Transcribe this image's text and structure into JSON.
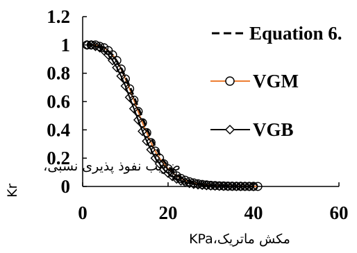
{
  "chart_data": {
    "type": "scatter",
    "title": "",
    "xlabel": "مکش ماتریک،KPa",
    "ylabel_rotated": "Kr",
    "ylabel_overlay": "ضریب نفوذ پذیری نسبی،",
    "xlim": [
      0,
      60
    ],
    "ylim": [
      0,
      1.2
    ],
    "x_ticks": [
      "0",
      "20",
      "40",
      "60"
    ],
    "y_ticks": [
      "0",
      "0.2",
      "0.4",
      "0.6",
      "0.8",
      "1",
      "1.2"
    ],
    "grid": false,
    "legend_position": "right",
    "series": [
      {
        "name": "Equation 6.",
        "style": "dashed-line",
        "color": "#000000",
        "x": [
          1,
          3,
          5,
          7,
          9,
          11,
          13,
          15,
          17,
          19,
          21,
          23,
          25,
          27,
          29,
          31,
          33,
          35,
          37
        ],
        "y": [
          1.0,
          1.0,
          0.98,
          0.93,
          0.84,
          0.71,
          0.56,
          0.41,
          0.28,
          0.18,
          0.11,
          0.065,
          0.036,
          0.02,
          0.011,
          0.006,
          0.003,
          0.002,
          0.001
        ]
      },
      {
        "name": "VGM",
        "style": "line-circle",
        "color": "#ED7D31",
        "x": [
          1,
          2,
          3,
          4,
          5,
          6,
          7,
          8,
          9,
          10,
          11,
          12,
          13,
          14,
          15,
          16,
          17,
          18,
          19,
          20,
          21,
          22,
          23,
          24,
          25,
          26,
          27,
          28,
          29,
          30,
          31,
          32,
          33,
          34,
          35,
          36,
          37,
          38,
          39,
          40,
          41
        ],
        "y": [
          1.0,
          1.0,
          1.0,
          0.99,
          0.98,
          0.96,
          0.93,
          0.89,
          0.83,
          0.76,
          0.69,
          0.61,
          0.53,
          0.45,
          0.38,
          0.31,
          0.25,
          0.2,
          0.16,
          0.125,
          0.097,
          0.075,
          0.057,
          0.044,
          0.033,
          0.025,
          0.019,
          0.014,
          0.011,
          0.008,
          0.006,
          0.0045,
          0.0034,
          0.0025,
          0.0019,
          0.0014,
          0.001,
          0.0008,
          0.0006,
          0.0004,
          0.0003
        ]
      },
      {
        "name": "VGB",
        "style": "line-diamond",
        "color": "#000000",
        "x": [
          1,
          2,
          3,
          4,
          5,
          6,
          7,
          8,
          9,
          10,
          11,
          12,
          13,
          14,
          15,
          16,
          17,
          18,
          19,
          20,
          21,
          22,
          23,
          24,
          25,
          26,
          27,
          28,
          29,
          30,
          31,
          32,
          33,
          34,
          35,
          36,
          37,
          38,
          39,
          40
        ],
        "y": [
          1.0,
          1.0,
          0.99,
          0.98,
          0.96,
          0.93,
          0.89,
          0.84,
          0.78,
          0.71,
          0.63,
          0.55,
          0.47,
          0.39,
          0.32,
          0.26,
          0.2,
          0.16,
          0.12,
          0.094,
          0.071,
          0.053,
          0.04,
          0.03,
          0.022,
          0.016,
          0.012,
          0.009,
          0.0065,
          0.0048,
          0.0035,
          0.0026,
          0.0019,
          0.0014,
          0.001,
          0.0007,
          0.0005,
          0.0004,
          0.0003,
          0.0002
        ]
      }
    ]
  }
}
